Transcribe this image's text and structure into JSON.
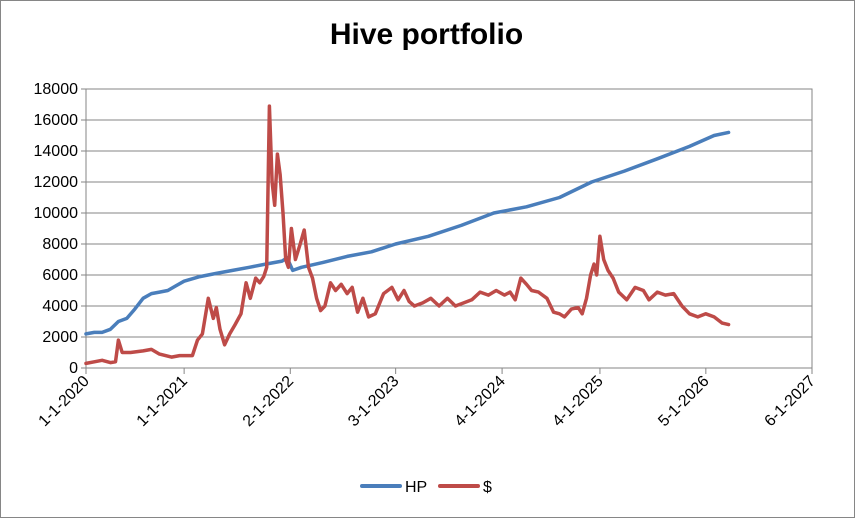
{
  "chart_data": {
    "type": "line",
    "title": "Hive portfolio",
    "xlabel": "",
    "ylabel": "",
    "ylim": [
      0,
      18000
    ],
    "y_ticks": [
      0,
      2000,
      4000,
      6000,
      8000,
      10000,
      12000,
      14000,
      16000,
      18000
    ],
    "x_ticks": [
      "1-1-2020",
      "1-1-2021",
      "2-1-2022",
      "3-1-2023",
      "4-1-2024",
      "4-1-2025",
      "5-1-2026",
      "6-1-2027"
    ],
    "x_tick_dates": [
      "2020-01-01",
      "2021-01-01",
      "2022-02-01",
      "2023-03-01",
      "2024-04-01",
      "2025-04-01",
      "2026-05-01",
      "2027-06-01"
    ],
    "grid": "horizontal",
    "legend_position": "bottom",
    "colors": {
      "HP": "#4a7ebb",
      "$": "#be4b48"
    },
    "series": [
      {
        "name": "HP",
        "points": [
          [
            "2020-01-01",
            2200
          ],
          [
            "2020-02-01",
            2300
          ],
          [
            "2020-03-01",
            2300
          ],
          [
            "2020-04-01",
            2500
          ],
          [
            "2020-05-01",
            3000
          ],
          [
            "2020-06-01",
            3200
          ],
          [
            "2020-07-01",
            3800
          ],
          [
            "2020-08-01",
            4500
          ],
          [
            "2020-09-01",
            4800
          ],
          [
            "2020-10-01",
            4900
          ],
          [
            "2020-11-01",
            5000
          ],
          [
            "2020-12-01",
            5300
          ],
          [
            "2021-01-01",
            5600
          ],
          [
            "2021-03-01",
            5900
          ],
          [
            "2021-05-01",
            6100
          ],
          [
            "2021-07-01",
            6300
          ],
          [
            "2021-09-01",
            6500
          ],
          [
            "2021-11-01",
            6700
          ],
          [
            "2022-01-01",
            6900
          ],
          [
            "2022-01-20",
            7100
          ],
          [
            "2022-02-10",
            6300
          ],
          [
            "2022-03-15",
            6500
          ],
          [
            "2022-06-01",
            6800
          ],
          [
            "2022-09-01",
            7200
          ],
          [
            "2022-12-01",
            7500
          ],
          [
            "2023-03-01",
            8000
          ],
          [
            "2023-07-01",
            8500
          ],
          [
            "2023-11-01",
            9200
          ],
          [
            "2024-03-01",
            10000
          ],
          [
            "2024-07-01",
            10400
          ],
          [
            "2024-11-01",
            11000
          ],
          [
            "2025-03-01",
            12000
          ],
          [
            "2025-07-01",
            12700
          ],
          [
            "2025-11-01",
            13500
          ],
          [
            "2026-03-01",
            14300
          ],
          [
            "2026-06-01",
            15000
          ],
          [
            "2026-07-25",
            15200
          ]
        ]
      },
      {
        "name": "$",
        "points": [
          [
            "2020-01-01",
            300
          ],
          [
            "2020-02-01",
            400
          ],
          [
            "2020-03-01",
            500
          ],
          [
            "2020-04-01",
            350
          ],
          [
            "2020-04-20",
            400
          ],
          [
            "2020-05-01",
            1800
          ],
          [
            "2020-05-15",
            1000
          ],
          [
            "2020-06-15",
            1000
          ],
          [
            "2020-08-01",
            1100
          ],
          [
            "2020-09-01",
            1200
          ],
          [
            "2020-10-01",
            900
          ],
          [
            "2020-11-15",
            700
          ],
          [
            "2020-12-15",
            800
          ],
          [
            "2021-02-01",
            800
          ],
          [
            "2021-02-20",
            1800
          ],
          [
            "2021-03-10",
            2200
          ],
          [
            "2021-04-01",
            4500
          ],
          [
            "2021-04-20",
            3200
          ],
          [
            "2021-05-01",
            3900
          ],
          [
            "2021-05-15",
            2500
          ],
          [
            "2021-06-01",
            1500
          ],
          [
            "2021-06-20",
            2200
          ],
          [
            "2021-07-10",
            2800
          ],
          [
            "2021-08-01",
            3500
          ],
          [
            "2021-08-20",
            5500
          ],
          [
            "2021-09-05",
            4500
          ],
          [
            "2021-09-25",
            5800
          ],
          [
            "2021-10-10",
            5500
          ],
          [
            "2021-10-25",
            5900
          ],
          [
            "2021-11-05",
            6500
          ],
          [
            "2021-11-15",
            16900
          ],
          [
            "2021-11-25",
            12000
          ],
          [
            "2021-12-05",
            10500
          ],
          [
            "2021-12-15",
            13800
          ],
          [
            "2021-12-25",
            12500
          ],
          [
            "2022-01-05",
            10000
          ],
          [
            "2022-01-15",
            7000
          ],
          [
            "2022-01-25",
            6500
          ],
          [
            "2022-02-05",
            9000
          ],
          [
            "2022-02-20",
            7000
          ],
          [
            "2022-03-10",
            8000
          ],
          [
            "2022-03-25",
            8900
          ],
          [
            "2022-04-10",
            6500
          ],
          [
            "2022-04-25",
            5800
          ],
          [
            "2022-05-10",
            4500
          ],
          [
            "2022-05-25",
            3700
          ],
          [
            "2022-06-10",
            4000
          ],
          [
            "2022-07-01",
            5500
          ],
          [
            "2022-07-20",
            5000
          ],
          [
            "2022-08-10",
            5400
          ],
          [
            "2022-09-01",
            4800
          ],
          [
            "2022-09-20",
            5200
          ],
          [
            "2022-10-10",
            3600
          ],
          [
            "2022-10-30",
            4500
          ],
          [
            "2022-11-20",
            3300
          ],
          [
            "2022-12-15",
            3500
          ],
          [
            "2023-01-15",
            4800
          ],
          [
            "2023-02-15",
            5200
          ],
          [
            "2023-03-10",
            4400
          ],
          [
            "2023-04-01",
            5000
          ],
          [
            "2023-04-20",
            4300
          ],
          [
            "2023-05-10",
            4000
          ],
          [
            "2023-06-10",
            4200
          ],
          [
            "2023-07-10",
            4500
          ],
          [
            "2023-08-10",
            4000
          ],
          [
            "2023-09-10",
            4500
          ],
          [
            "2023-10-10",
            4000
          ],
          [
            "2023-11-10",
            4200
          ],
          [
            "2023-12-10",
            4400
          ],
          [
            "2024-01-10",
            4900
          ],
          [
            "2024-02-10",
            4700
          ],
          [
            "2024-03-10",
            5000
          ],
          [
            "2024-04-10",
            4700
          ],
          [
            "2024-05-01",
            4900
          ],
          [
            "2024-05-20",
            4400
          ],
          [
            "2024-06-10",
            5800
          ],
          [
            "2024-07-01",
            5400
          ],
          [
            "2024-07-20",
            5000
          ],
          [
            "2024-08-15",
            4900
          ],
          [
            "2024-09-15",
            4500
          ],
          [
            "2024-10-10",
            3600
          ],
          [
            "2024-11-01",
            3500
          ],
          [
            "2024-11-20",
            3300
          ],
          [
            "2024-12-15",
            3800
          ],
          [
            "2025-01-10",
            3900
          ],
          [
            "2025-01-25",
            3500
          ],
          [
            "2025-02-10",
            4500
          ],
          [
            "2025-02-25",
            6000
          ],
          [
            "2025-03-10",
            6700
          ],
          [
            "2025-03-20",
            6000
          ],
          [
            "2025-04-01",
            8500
          ],
          [
            "2025-04-15",
            7000
          ],
          [
            "2025-05-01",
            6300
          ],
          [
            "2025-05-20",
            5800
          ],
          [
            "2025-06-10",
            4900
          ],
          [
            "2025-07-10",
            4400
          ],
          [
            "2025-08-10",
            5200
          ],
          [
            "2025-09-10",
            5000
          ],
          [
            "2025-10-01",
            4400
          ],
          [
            "2025-11-01",
            4900
          ],
          [
            "2025-12-01",
            4700
          ],
          [
            "2026-01-01",
            4800
          ],
          [
            "2026-02-01",
            4000
          ],
          [
            "2026-03-01",
            3500
          ],
          [
            "2026-04-01",
            3300
          ],
          [
            "2026-05-01",
            3500
          ],
          [
            "2026-06-01",
            3300
          ],
          [
            "2026-07-01",
            2900
          ],
          [
            "2026-07-25",
            2800
          ]
        ]
      }
    ]
  }
}
